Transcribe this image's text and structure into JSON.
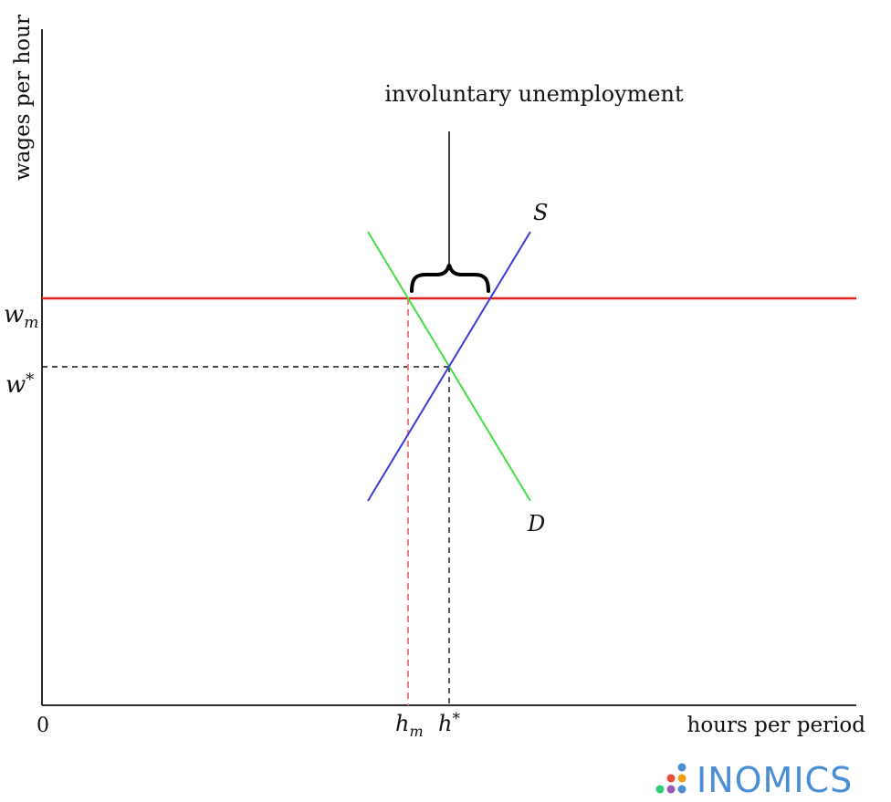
{
  "diagram": {
    "y_axis_label": "wages per hour",
    "x_axis_label": "hours per period",
    "origin_label": "0",
    "annotation": "involuntary unemployment",
    "wage_min_label": {
      "base": "w",
      "sub": "m"
    },
    "wage_eq_label": {
      "base": "w",
      "sup": "*"
    },
    "hours_min_label": {
      "base": "h",
      "sub": "m"
    },
    "hours_eq_label": {
      "base": "h",
      "sup": "*"
    },
    "supply_label": "S",
    "demand_label": "D",
    "colors": {
      "supply": "#3b3bdd",
      "demand": "#3fe03f",
      "minimum_wage": "#e02020",
      "minimum_wage_guide": "#f08080",
      "axes": "#111111"
    }
  },
  "logo": {
    "text": "INOMICS",
    "color": "#4a8ed6"
  }
}
